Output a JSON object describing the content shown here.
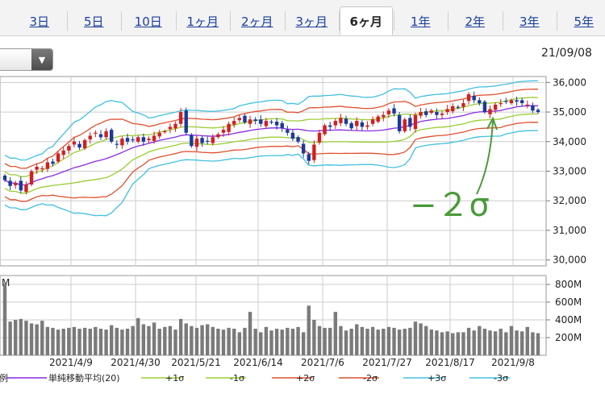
{
  "tabs": [
    {
      "label": "3日",
      "active": false
    },
    {
      "label": "5日",
      "active": false
    },
    {
      "label": "10日",
      "active": false
    },
    {
      "label": "1ヶ月",
      "active": false
    },
    {
      "label": "2ヶ月",
      "active": false
    },
    {
      "label": "3ヶ月",
      "active": false
    },
    {
      "label": "6ヶ月",
      "active": true
    },
    {
      "label": "1年",
      "active": false
    },
    {
      "label": "2年",
      "active": false
    },
    {
      "label": "3年",
      "active": false
    },
    {
      "label": "5年",
      "active": false
    }
  ],
  "date_label": "21/09/08",
  "dropdown_icon": "chevron-down-icon",
  "chart_data": [
    {
      "type": "candlestick",
      "ylim": [
        29800,
        36200
      ],
      "yticks": [
        "30,000",
        "31,000",
        "32,000",
        "33,000",
        "34,000",
        "35,000",
        "36,000"
      ],
      "ytick_values": [
        30000,
        31000,
        32000,
        33000,
        34000,
        35000,
        36000
      ],
      "xticks": [
        "2021/4/9",
        "2021/4/30",
        "2021/5/21",
        "2021/6/14",
        "2021/7/6",
        "2021/7/27",
        "2021/8/17",
        "2021/9/8"
      ],
      "annotation": "−２σ",
      "close": [
        32700,
        32500,
        32600,
        32350,
        32550,
        33000,
        33150,
        33100,
        33300,
        33250,
        33600,
        33700,
        33850,
        34000,
        33800,
        34050,
        34200,
        34300,
        34150,
        34350,
        34000,
        33900,
        34100,
        34000,
        34050,
        34150,
        34000,
        34100,
        34200,
        34300,
        34350,
        34500,
        34600,
        35000,
        34300,
        33850,
        34100,
        33950,
        34000,
        34150,
        34250,
        34400,
        34600,
        34700,
        34800,
        34650,
        34750,
        34700,
        34600,
        34700,
        34650,
        34550,
        34450,
        34300,
        34100,
        34000,
        33600,
        33350,
        33900,
        34300,
        34550,
        34500,
        34700,
        34800,
        34600,
        34450,
        34700,
        34500,
        34550,
        34750,
        34850,
        34900,
        35050,
        34950,
        34350,
        34750,
        34500,
        34900,
        35000,
        34900,
        35050,
        34900,
        34950,
        35100,
        35200,
        35150,
        35300,
        35600,
        35400,
        35300,
        35000,
        35100,
        35250,
        35300,
        35350,
        35400,
        35350,
        35300,
        35250,
        35050,
        35000
      ]
    },
    {
      "type": "bar",
      "ylim": [
        0,
        900
      ],
      "yticks": [
        "200M",
        "400M",
        "600M",
        "800M"
      ],
      "ytick_values": [
        200,
        400,
        600,
        800
      ],
      "unit_label": "M",
      "values": [
        810,
        380,
        400,
        410,
        390,
        360,
        350,
        390,
        320,
        310,
        290,
        300,
        310,
        320,
        300,
        310,
        300,
        320,
        300,
        290,
        340,
        310,
        290,
        300,
        330,
        420,
        350,
        330,
        370,
        300,
        320,
        330,
        290,
        410,
        360,
        330,
        310,
        340,
        350,
        320,
        300,
        290,
        310,
        300,
        260,
        310,
        490,
        300,
        260,
        320,
        280,
        300,
        290,
        310,
        300,
        320,
        260,
        560,
        400,
        330,
        310,
        310,
        490,
        330,
        280,
        300,
        350,
        320,
        300,
        320,
        290,
        300,
        320,
        310,
        290,
        300,
        310,
        380,
        360,
        330,
        290,
        280,
        260,
        270,
        250,
        260,
        260,
        310,
        280,
        330,
        300,
        280,
        270,
        300,
        260,
        330,
        280,
        270,
        320,
        260,
        250
      ]
    }
  ],
  "legend": {
    "head": "凡例",
    "items": [
      {
        "label": "単純移動平均(20)",
        "color": "#8a2be2"
      },
      {
        "label": "+1σ",
        "color": "#9acd32"
      },
      {
        "label": "-1σ",
        "color": "#9acd32"
      },
      {
        "label": "+2σ",
        "color": "#e05030"
      },
      {
        "label": "-2σ",
        "color": "#e05030"
      },
      {
        "label": "+3σ",
        "color": "#40c0e0"
      },
      {
        "label": "-3σ",
        "color": "#40c0e0"
      }
    ]
  },
  "colors": {
    "up": "#d02020",
    "down": "#1a3a9a",
    "volume": "#7a7a7a",
    "annotation": "#4a9a3a",
    "grid": "#cccccc"
  }
}
